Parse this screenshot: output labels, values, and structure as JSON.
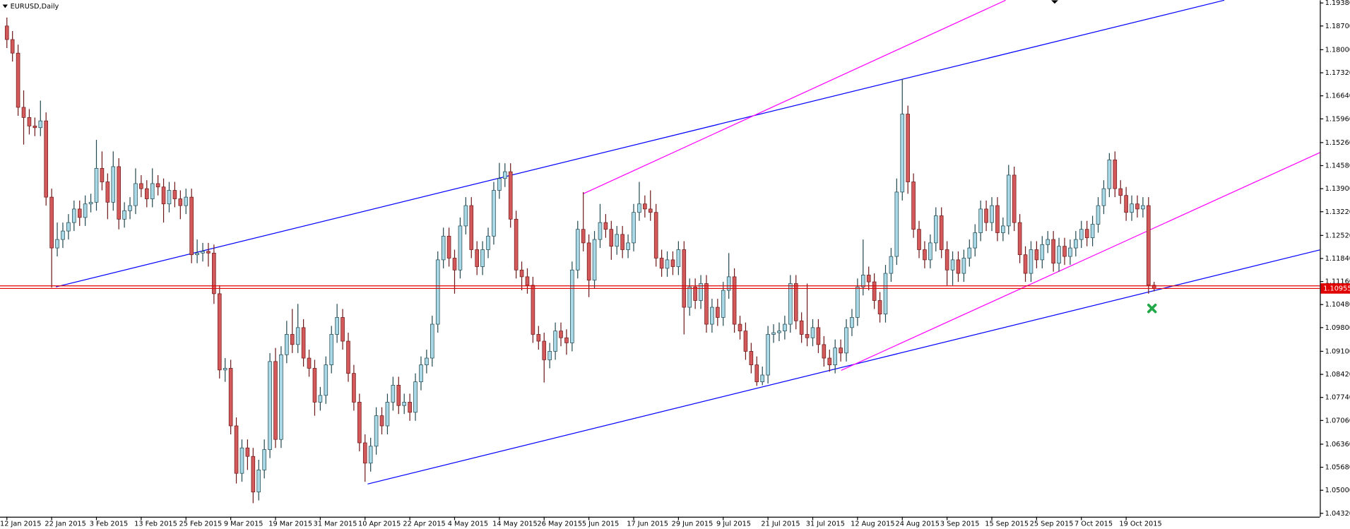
{
  "chart_data": {
    "type": "candlestick",
    "title": "EURUSD,Daily",
    "up_color": "#a9d9e6",
    "up_stroke": "#244a52",
    "down_color": "#d4595b",
    "down_stroke": "#6e1a1a",
    "current_price": 1.10955,
    "current_price_color": "#e00000",
    "ylim": [
      1.0422,
      1.1946
    ],
    "yticks": [
      {
        "value": 1.1938,
        "label": "1.19380"
      },
      {
        "value": 1.187,
        "label": "1.18700"
      },
      {
        "value": 1.18,
        "label": "1.18000"
      },
      {
        "value": 1.1732,
        "label": "1.17320"
      },
      {
        "value": 1.1664,
        "label": "1.16640"
      },
      {
        "value": 1.1596,
        "label": "1.15960"
      },
      {
        "value": 1.1526,
        "label": "1.15260"
      },
      {
        "value": 1.1458,
        "label": "1.14580"
      },
      {
        "value": 1.139,
        "label": "1.13900"
      },
      {
        "value": 1.1322,
        "label": "1.13220"
      },
      {
        "value": 1.1252,
        "label": "1.12520"
      },
      {
        "value": 1.1184,
        "label": "1.11840"
      },
      {
        "value": 1.1116,
        "label": "1.11160"
      },
      {
        "value": 1.1048,
        "label": "1.10480"
      },
      {
        "value": 1.098,
        "label": "1.09800"
      },
      {
        "value": 1.091,
        "label": "1.09100"
      },
      {
        "value": 1.0842,
        "label": "1.08420"
      },
      {
        "value": 1.0774,
        "label": "1.07740"
      },
      {
        "value": 1.0706,
        "label": "1.07060"
      },
      {
        "value": 1.0636,
        "label": "1.06360"
      },
      {
        "value": 1.0568,
        "label": "1.05680"
      },
      {
        "value": 1.05,
        "label": "1.05000"
      },
      {
        "value": 1.0432,
        "label": "1.04320"
      }
    ],
    "categories": [
      "12 Jan 2015",
      null,
      null,
      null,
      null,
      null,
      null,
      null,
      "22 Jan 2015",
      null,
      null,
      null,
      null,
      null,
      null,
      null,
      "3 Feb 2015",
      null,
      null,
      null,
      null,
      null,
      null,
      null,
      "13 Feb 2015",
      null,
      null,
      null,
      null,
      null,
      null,
      null,
      "25 Feb 2015",
      null,
      null,
      null,
      null,
      null,
      null,
      null,
      "9 Mar 2015",
      null,
      null,
      null,
      null,
      null,
      null,
      null,
      "19 Mar 2015",
      null,
      null,
      null,
      null,
      null,
      null,
      null,
      "31 Mar 2015",
      null,
      null,
      null,
      null,
      null,
      null,
      null,
      "10 Apr 2015",
      null,
      null,
      null,
      null,
      null,
      null,
      null,
      "22 Apr 2015",
      null,
      null,
      null,
      null,
      null,
      null,
      null,
      "4 May 2015",
      null,
      null,
      null,
      null,
      null,
      null,
      null,
      "14 May 2015",
      null,
      null,
      null,
      null,
      null,
      null,
      null,
      "26 May 2015",
      null,
      null,
      null,
      null,
      null,
      null,
      null,
      "5 Jun 2015",
      null,
      null,
      null,
      null,
      null,
      null,
      null,
      "17 Jun 2015",
      null,
      null,
      null,
      null,
      null,
      null,
      null,
      "29 Jun 2015",
      null,
      null,
      null,
      null,
      null,
      null,
      null,
      "9 Jul 2015",
      null,
      null,
      null,
      null,
      null,
      null,
      null,
      "21 Jul 2015",
      null,
      null,
      null,
      null,
      null,
      null,
      null,
      "31 Jul 2015",
      null,
      null,
      null,
      null,
      null,
      null,
      null,
      "12 Aug 2015",
      null,
      null,
      null,
      null,
      null,
      null,
      null,
      "24 Aug 2015",
      null,
      null,
      null,
      null,
      null,
      null,
      null,
      "3 Sep 2015",
      null,
      null,
      null,
      null,
      null,
      null,
      null,
      "15 Sep 2015",
      null,
      null,
      null,
      null,
      null,
      null,
      null,
      "25 Sep 2015",
      null,
      null,
      null,
      null,
      null,
      null,
      null,
      "7 Oct 2015",
      null,
      null,
      null,
      null,
      null,
      null,
      null,
      "19 Oct 2015",
      null,
      null,
      null,
      null,
      null
    ],
    "open": [
      1.187,
      1.183,
      1.179,
      1.163,
      1.16,
      1.1575,
      1.157,
      1.159,
      1.1365,
      1.1215,
      1.124,
      1.1265,
      1.129,
      1.133,
      1.1305,
      1.1345,
      1.135,
      1.145,
      1.141,
      1.135,
      1.1455,
      1.13,
      1.1325,
      1.134,
      1.1405,
      1.139,
      1.136,
      1.1405,
      1.1395,
      1.1345,
      1.1385,
      1.136,
      1.134,
      1.1365,
      1.1195,
      1.12,
      1.1205,
      1.12,
      1.108,
      1.0855,
      1.086,
      1.069,
      1.055,
      1.0625,
      1.06,
      1.0495,
      1.056,
      1.062,
      1.088,
      1.065,
      1.09,
      1.096,
      1.093,
      1.098,
      1.089,
      1.086,
      1.076,
      1.078,
      1.087,
      1.096,
      1.101,
      1.094,
      1.0845,
      1.076,
      1.064,
      1.058,
      1.063,
      1.072,
      1.069,
      1.076,
      1.081,
      1.075,
      1.076,
      1.073,
      1.082,
      1.087,
      1.089,
      1.099,
      1.118,
      1.125,
      1.1185,
      1.115,
      1.128,
      1.134,
      1.121,
      1.116,
      1.121,
      1.125,
      1.1385,
      1.142,
      1.144,
      1.13,
      1.115,
      1.113,
      1.1105,
      1.096,
      1.094,
      1.0885,
      1.091,
      1.097,
      1.095,
      1.0935,
      1.115,
      1.127,
      1.123,
      1.112,
      1.124,
      1.129,
      1.127,
      1.122,
      1.1255,
      1.121,
      1.123,
      1.132,
      1.1345,
      1.133,
      1.132,
      1.1185,
      1.1155,
      1.118,
      1.116,
      1.121,
      1.104,
      1.11,
      1.106,
      1.111,
      1.099,
      1.104,
      1.101,
      1.109,
      1.113,
      1.099,
      1.097,
      1.091,
      1.087,
      1.082,
      1.084,
      1.096,
      1.0965,
      1.097,
      1.099,
      1.111,
      1.1,
      1.096,
      1.095,
      1.098,
      1.093,
      1.089,
      1.087,
      1.092,
      1.0905,
      1.098,
      1.101,
      1.11,
      1.1135,
      1.1115,
      1.106,
      1.102,
      1.114,
      1.119,
      1.138,
      1.161,
      1.141,
      1.127,
      1.121,
      1.118,
      1.123,
      1.131,
      1.121,
      1.115,
      1.118,
      1.114,
      1.1185,
      1.1215,
      1.126,
      1.133,
      1.129,
      1.134,
      1.126,
      1.128,
      1.143,
      1.129,
      1.1195,
      1.114,
      1.121,
      1.118,
      1.1225,
      1.124,
      1.117,
      1.122,
      1.119,
      1.1215,
      1.124,
      1.127,
      1.1245,
      1.1285,
      1.134,
      1.139,
      1.1475,
      1.139,
      1.137,
      1.132,
      1.1345,
      1.133,
      1.134,
      1.1105
    ],
    "high": [
      1.1895,
      1.1855,
      1.1815,
      1.168,
      1.1625,
      1.16,
      1.165,
      1.1615,
      1.139,
      1.129,
      1.129,
      1.1315,
      1.1355,
      1.1355,
      1.137,
      1.1375,
      1.1534,
      1.15,
      1.1435,
      1.15,
      1.148,
      1.135,
      1.1365,
      1.145,
      1.143,
      1.1415,
      1.145,
      1.143,
      1.142,
      1.141,
      1.141,
      1.1385,
      1.139,
      1.139,
      1.124,
      1.123,
      1.123,
      1.1225,
      1.1105,
      1.089,
      1.0885,
      1.0715,
      1.065,
      1.065,
      1.0625,
      1.059,
      1.065,
      1.0905,
      1.092,
      1.0925,
      1.1,
      1.1035,
      1.105,
      1.1005,
      1.0915,
      1.0885,
      1.0805,
      1.0895,
      1.0985,
      1.105,
      1.1035,
      1.0965,
      1.087,
      1.0785,
      1.0665,
      1.0655,
      1.0745,
      1.0745,
      1.0785,
      1.0835,
      1.0835,
      1.0785,
      1.0785,
      1.0845,
      1.0895,
      1.0915,
      1.1015,
      1.1205,
      1.1275,
      1.1275,
      1.121,
      1.1305,
      1.1365,
      1.1365,
      1.1235,
      1.1235,
      1.1275,
      1.141,
      1.1466,
      1.1465,
      1.1465,
      1.1325,
      1.1175,
      1.1155,
      1.113,
      1.0985,
      1.0965,
      1.0935,
      1.0995,
      1.0995,
      1.0975,
      1.1175,
      1.1295,
      1.138,
      1.1255,
      1.1265,
      1.1345,
      1.1315,
      1.1295,
      1.128,
      1.128,
      1.1255,
      1.1345,
      1.141,
      1.137,
      1.1385,
      1.1345,
      1.121,
      1.1205,
      1.1205,
      1.1235,
      1.1235,
      1.1125,
      1.1125,
      1.1135,
      1.1135,
      1.1065,
      1.1065,
      1.1115,
      1.12,
      1.1155,
      1.1015,
      1.0995,
      1.0935,
      1.0895,
      1.0865,
      1.0985,
      1.099,
      1.0995,
      1.1015,
      1.1135,
      1.1135,
      1.1025,
      1.111,
      1.1005,
      1.1005,
      1.0955,
      1.0915,
      1.0945,
      1.0945,
      1.1005,
      1.1035,
      1.1125,
      1.124,
      1.116,
      1.114,
      1.1085,
      1.1165,
      1.1215,
      1.142,
      1.1714,
      1.1635,
      1.1435,
      1.1295,
      1.1235,
      1.1255,
      1.1335,
      1.1335,
      1.1235,
      1.1205,
      1.1205,
      1.121,
      1.124,
      1.1285,
      1.1355,
      1.1355,
      1.1365,
      1.1365,
      1.1305,
      1.146,
      1.1455,
      1.1315,
      1.122,
      1.1235,
      1.1235,
      1.125,
      1.1265,
      1.1265,
      1.1245,
      1.1245,
      1.124,
      1.1265,
      1.1295,
      1.1295,
      1.131,
      1.1365,
      1.1415,
      1.1495,
      1.15,
      1.1415,
      1.1395,
      1.137,
      1.137,
      1.1365,
      1.1365,
      1.1115
    ],
    "low": [
      1.1805,
      1.1765,
      1.1605,
      1.152,
      1.155,
      1.1545,
      1.1545,
      1.134,
      1.1098,
      1.119,
      1.1215,
      1.124,
      1.1265,
      1.128,
      1.128,
      1.132,
      1.1325,
      1.1385,
      1.13,
      1.1325,
      1.127,
      1.1275,
      1.13,
      1.1315,
      1.1365,
      1.1335,
      1.1335,
      1.137,
      1.129,
      1.132,
      1.1335,
      1.13,
      1.1315,
      1.117,
      1.117,
      1.1175,
      1.116,
      1.105,
      1.083,
      1.082,
      1.0665,
      1.052,
      1.0525,
      1.056,
      1.0462,
      1.047,
      1.0535,
      1.0595,
      1.0625,
      1.0625,
      1.0875,
      1.0905,
      1.0905,
      1.0865,
      1.0835,
      1.072,
      1.0735,
      1.0755,
      1.0845,
      1.0935,
      1.0915,
      1.082,
      1.0735,
      1.0615,
      1.0525,
      1.0555,
      1.0605,
      1.0665,
      1.0665,
      1.0735,
      1.0725,
      1.0725,
      1.0705,
      1.0705,
      1.0795,
      1.0845,
      1.0865,
      1.0965,
      1.1155,
      1.116,
      1.108,
      1.1125,
      1.1255,
      1.1185,
      1.1135,
      1.1135,
      1.1185,
      1.1225,
      1.136,
      1.1395,
      1.1275,
      1.1125,
      1.109,
      1.108,
      1.0935,
      1.0915,
      1.0818,
      1.086,
      1.0885,
      1.0925,
      1.09,
      1.091,
      1.1125,
      1.1205,
      1.107,
      1.1095,
      1.1215,
      1.1245,
      1.118,
      1.1195,
      1.1185,
      1.1185,
      1.1205,
      1.1295,
      1.1305,
      1.1295,
      1.116,
      1.113,
      1.113,
      1.1135,
      1.1135,
      1.096,
      1.1015,
      1.1035,
      1.1035,
      1.0965,
      1.0965,
      1.0985,
      1.0985,
      1.1065,
      1.0965,
      1.0945,
      1.0885,
      1.0845,
      1.0808,
      1.081,
      1.0815,
      1.0935,
      1.094,
      1.0945,
      1.0965,
      1.0975,
      1.0935,
      1.0925,
      1.0925,
      1.0905,
      1.0865,
      1.085,
      1.0845,
      1.088,
      1.088,
      1.0955,
      1.0985,
      1.1075,
      1.109,
      1.1035,
      1.0995,
      1.0995,
      1.1115,
      1.1165,
      1.1355,
      1.1375,
      1.1245,
      1.1185,
      1.1155,
      1.1155,
      1.1205,
      1.1185,
      1.1105,
      1.1105,
      1.1115,
      1.1115,
      1.116,
      1.119,
      1.1235,
      1.1265,
      1.1265,
      1.1235,
      1.1235,
      1.1255,
      1.1265,
      1.117,
      1.1115,
      1.1115,
      1.1155,
      1.1155,
      1.12,
      1.1145,
      1.1145,
      1.1165,
      1.1165,
      1.119,
      1.1215,
      1.122,
      1.122,
      1.126,
      1.1315,
      1.1365,
      1.1365,
      1.1345,
      1.1295,
      1.1295,
      1.1305,
      1.1305,
      1.108,
      1.1087
    ],
    "close": [
      1.183,
      1.179,
      1.163,
      1.16,
      1.1575,
      1.157,
      1.159,
      1.1365,
      1.1215,
      1.124,
      1.1265,
      1.129,
      1.133,
      1.1305,
      1.1345,
      1.135,
      1.145,
      1.141,
      1.135,
      1.1455,
      1.13,
      1.1325,
      1.134,
      1.1405,
      1.139,
      1.136,
      1.1405,
      1.1395,
      1.1345,
      1.1385,
      1.136,
      1.134,
      1.1365,
      1.1195,
      1.12,
      1.1205,
      1.12,
      1.108,
      1.0855,
      1.086,
      1.069,
      1.055,
      1.0625,
      1.06,
      1.0495,
      1.056,
      1.062,
      1.088,
      1.065,
      1.09,
      1.096,
      1.093,
      1.098,
      1.089,
      1.086,
      1.076,
      1.078,
      1.087,
      1.096,
      1.101,
      1.094,
      1.0845,
      1.076,
      1.064,
      1.058,
      1.063,
      1.072,
      1.069,
      1.076,
      1.081,
      1.075,
      1.076,
      1.073,
      1.082,
      1.087,
      1.089,
      1.099,
      1.118,
      1.125,
      1.1185,
      1.115,
      1.128,
      1.134,
      1.121,
      1.116,
      1.121,
      1.125,
      1.1385,
      1.142,
      1.144,
      1.13,
      1.115,
      1.113,
      1.1105,
      1.096,
      1.094,
      1.0885,
      1.091,
      1.097,
      1.095,
      1.0935,
      1.115,
      1.127,
      1.123,
      1.112,
      1.124,
      1.129,
      1.127,
      1.122,
      1.1255,
      1.121,
      1.123,
      1.132,
      1.1345,
      1.133,
      1.132,
      1.1185,
      1.1155,
      1.118,
      1.116,
      1.121,
      1.104,
      1.11,
      1.106,
      1.111,
      1.099,
      1.104,
      1.101,
      1.109,
      1.113,
      1.099,
      1.097,
      1.091,
      1.087,
      1.082,
      1.084,
      1.096,
      1.0965,
      1.097,
      1.099,
      1.111,
      1.1,
      1.096,
      1.095,
      1.098,
      1.093,
      1.089,
      1.087,
      1.092,
      1.0905,
      1.098,
      1.101,
      1.11,
      1.1135,
      1.1115,
      1.106,
      1.102,
      1.114,
      1.119,
      1.138,
      1.161,
      1.141,
      1.127,
      1.121,
      1.118,
      1.123,
      1.131,
      1.121,
      1.115,
      1.118,
      1.114,
      1.1185,
      1.1215,
      1.126,
      1.133,
      1.129,
      1.134,
      1.126,
      1.128,
      1.143,
      1.129,
      1.1195,
      1.114,
      1.121,
      1.118,
      1.1225,
      1.124,
      1.117,
      1.122,
      1.119,
      1.1215,
      1.124,
      1.127,
      1.1245,
      1.1285,
      1.134,
      1.139,
      1.1475,
      1.139,
      1.137,
      1.132,
      1.1345,
      1.133,
      1.134,
      1.1105,
      1.1096
    ]
  }
}
